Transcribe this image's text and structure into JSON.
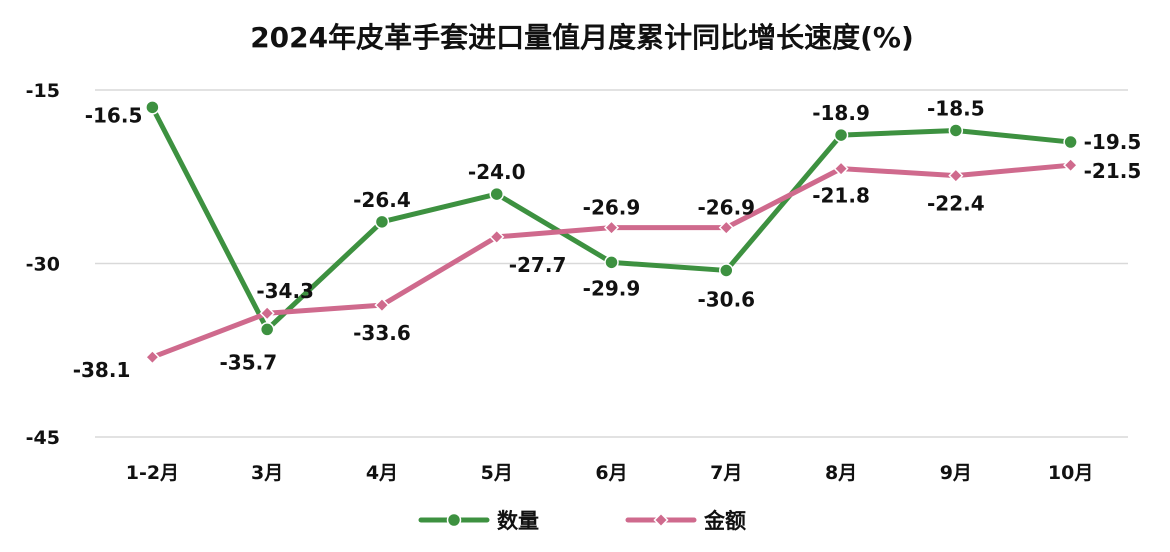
{
  "chart_data": {
    "type": "line",
    "title": "2024年皮革手套进口量值月度累计同比增长速度(%)",
    "xlabel": "",
    "ylabel": "",
    "categories": [
      "1-2月",
      "3月",
      "4月",
      "5月",
      "6月",
      "7月",
      "8月",
      "9月",
      "10月"
    ],
    "ylim": [
      -45,
      -15
    ],
    "yticks": [
      -15,
      -30,
      -45
    ],
    "grid": true,
    "legend_position": "bottom",
    "series": [
      {
        "name": "数量",
        "color": "#3d9140",
        "marker": "circle",
        "values": [
          -16.5,
          -35.7,
          -26.4,
          -24.0,
          -29.9,
          -30.6,
          -18.9,
          -18.5,
          -19.5
        ],
        "labels": [
          "-16.5",
          "-35.7",
          "-26.4",
          "-24.0",
          "-29.9",
          "-30.6",
          "-18.9",
          "-18.5",
          "-19.5"
        ]
      },
      {
        "name": "金额",
        "color": "#cf6a8d",
        "marker": "diamond",
        "values": [
          -38.1,
          -34.3,
          -33.6,
          -27.7,
          -26.9,
          -26.9,
          -21.8,
          -22.4,
          -21.5
        ],
        "labels": [
          "-38.1",
          "-34.3",
          "-33.6",
          "-27.7",
          "-26.9",
          "-26.9",
          "-21.8",
          "-22.4",
          "-21.5"
        ]
      }
    ]
  }
}
